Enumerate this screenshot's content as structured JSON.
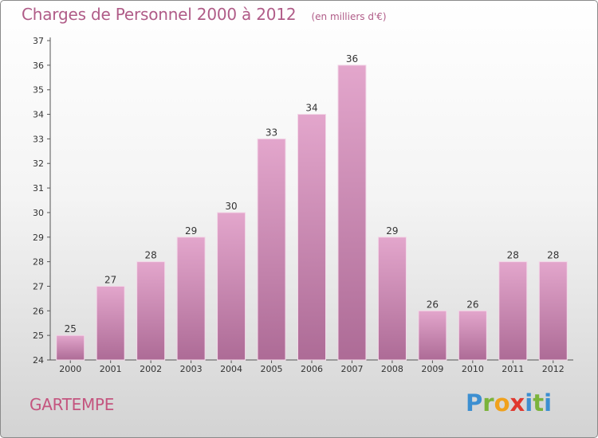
{
  "chart_data": {
    "type": "bar",
    "title": "Charges de Personnel 2000 à 2012",
    "subtitle": "(en milliers d'€)",
    "categories": [
      "2000",
      "2001",
      "2002",
      "2003",
      "2004",
      "2005",
      "2006",
      "2007",
      "2008",
      "2009",
      "2010",
      "2011",
      "2012"
    ],
    "values": [
      25,
      27,
      28,
      29,
      30,
      33,
      34,
      36,
      29,
      26,
      26,
      28,
      28
    ],
    "ylim": [
      24,
      37
    ],
    "yticks": [
      24,
      25,
      26,
      27,
      28,
      29,
      30,
      31,
      32,
      33,
      34,
      35,
      36,
      37
    ],
    "xlabel": "",
    "ylabel": "",
    "grid": false,
    "bar_color_top": "#e3a6cc",
    "bar_color_bottom": "#ad6b96"
  },
  "commune": "GARTEMPE",
  "logo_text": "Proxiti",
  "logo_colors": [
    "#3d8fd1",
    "#7bb33b",
    "#f0a11c",
    "#e0382f",
    "#3d8fd1",
    "#7bb33b"
  ]
}
